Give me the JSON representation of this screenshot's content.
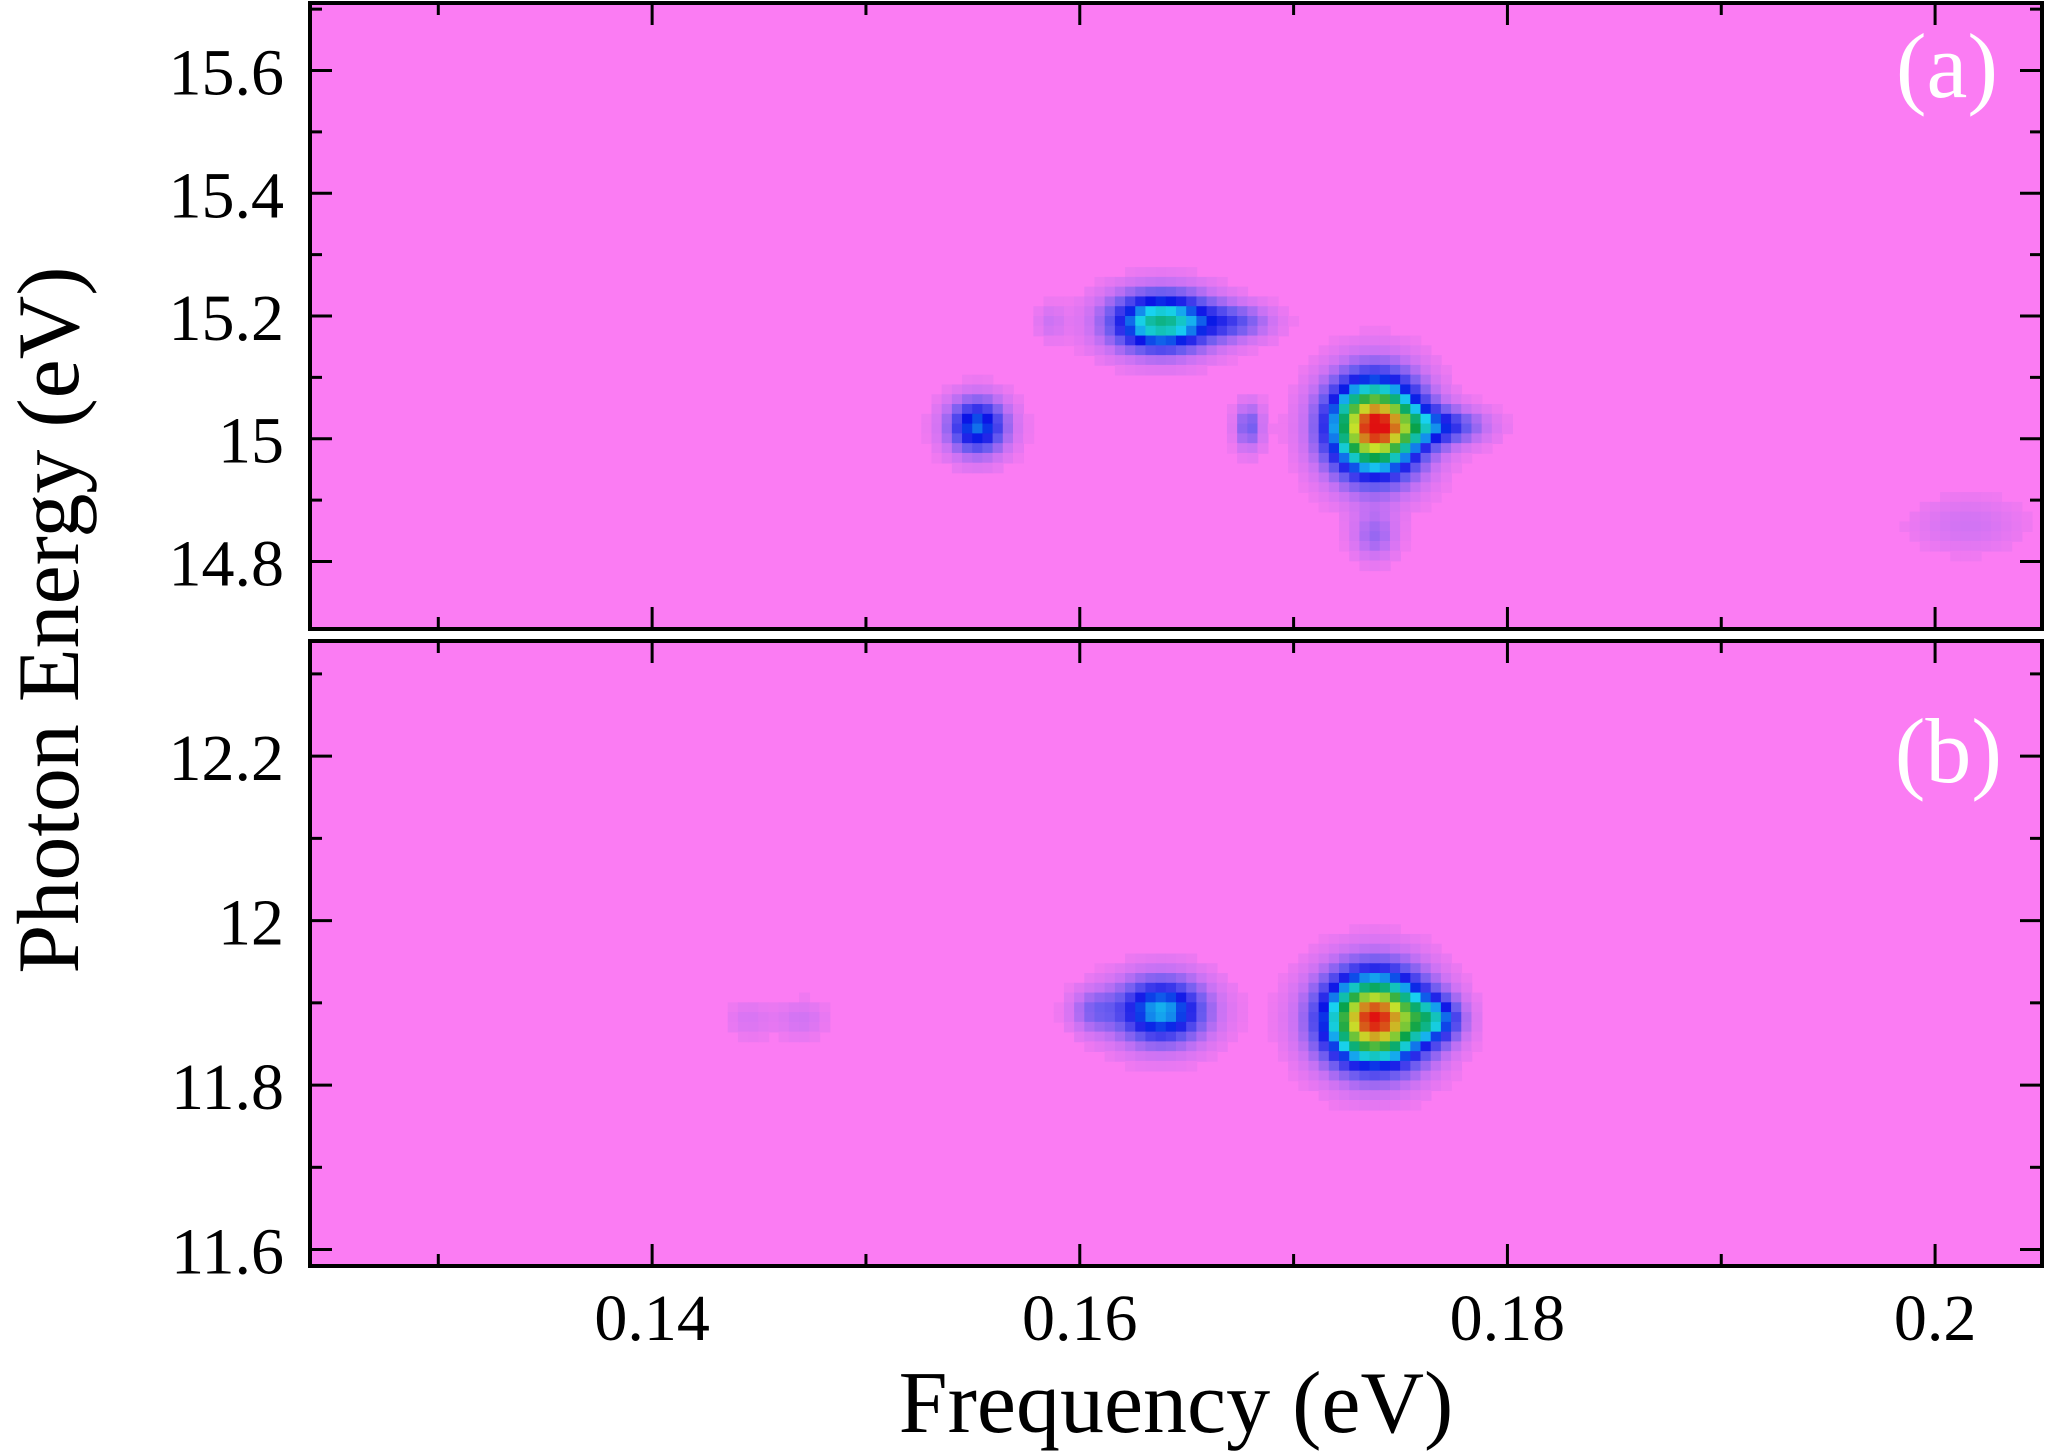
{
  "chart_data": [
    {
      "type": "heatmap",
      "panel_label": "(a)",
      "xlabel": "Frequency (eV)",
      "ylabel": "Photon Energy (eV)",
      "xlim": [
        0.124,
        0.205
      ],
      "ylim": [
        14.69,
        15.71
      ],
      "y_ticks": [
        14.8,
        15.0,
        15.2,
        15.4,
        15.6
      ],
      "y_tick_labels": [
        "14.8",
        "15",
        "15.2",
        "15.4",
        "15.6"
      ],
      "colormap": [
        "#ff7cf0",
        "#c872f4",
        "#6a5cf0",
        "#0a14e6",
        "#18d2f0",
        "#08a24a",
        "#c8e12a",
        "#e01010"
      ],
      "background_color": "#fb7cf3",
      "features": [
        {
          "x": 0.1638,
          "y": 15.19,
          "sx": 0.0019,
          "sy": 0.038,
          "amp": 0.66
        },
        {
          "x": 0.1675,
          "y": 15.19,
          "sx": 0.0013,
          "sy": 0.022,
          "amp": 0.22
        },
        {
          "x": 0.1586,
          "y": 15.19,
          "sx": 0.0005,
          "sy": 0.022,
          "amp": 0.12
        },
        {
          "x": 0.1552,
          "y": 15.02,
          "sx": 0.0011,
          "sy": 0.036,
          "amp": 0.5
        },
        {
          "x": 0.1738,
          "y": 15.02,
          "sx": 0.0017,
          "sy": 0.062,
          "amp": 1.0
        },
        {
          "x": 0.1772,
          "y": 15.02,
          "sx": 0.0015,
          "sy": 0.022,
          "amp": 0.3
        },
        {
          "x": 0.1679,
          "y": 15.02,
          "sx": 0.0005,
          "sy": 0.03,
          "amp": 0.28
        },
        {
          "x": 0.1738,
          "y": 14.84,
          "sx": 0.0008,
          "sy": 0.03,
          "amp": 0.2
        },
        {
          "x": 0.2015,
          "y": 14.86,
          "sx": 0.002,
          "sy": 0.035,
          "amp": 0.12
        }
      ]
    },
    {
      "type": "heatmap",
      "panel_label": "(b)",
      "xlabel": "Frequency (eV)",
      "ylabel": "Photon Energy (eV)",
      "xlim": [
        0.124,
        0.205
      ],
      "ylim": [
        11.58,
        12.34
      ],
      "y_ticks": [
        11.6,
        11.8,
        12.0,
        12.2
      ],
      "y_tick_labels": [
        "11.6",
        "11.8",
        "12",
        "12.2"
      ],
      "x_ticks": [
        0.14,
        0.16,
        0.18,
        0.2
      ],
      "x_tick_labels": [
        "0.14",
        "0.16",
        "0.18",
        "0.2"
      ],
      "colormap": [
        "#ff7cf0",
        "#c872f4",
        "#6a5cf0",
        "#0a14e6",
        "#18d2f0",
        "#08a24a",
        "#c8e12a",
        "#e01010"
      ],
      "background_color": "#fb7cf3",
      "features": [
        {
          "x": 0.1638,
          "y": 11.89,
          "sx": 0.0017,
          "sy": 0.032,
          "amp": 0.55
        },
        {
          "x": 0.1738,
          "y": 11.88,
          "sx": 0.0019,
          "sy": 0.045,
          "amp": 1.0
        },
        {
          "x": 0.1768,
          "y": 11.88,
          "sx": 0.0009,
          "sy": 0.02,
          "amp": 0.3
        },
        {
          "x": 0.1605,
          "y": 11.89,
          "sx": 0.0008,
          "sy": 0.02,
          "amp": 0.18
        },
        {
          "x": 0.147,
          "y": 11.88,
          "sx": 0.0009,
          "sy": 0.018,
          "amp": 0.12
        },
        {
          "x": 0.1445,
          "y": 11.88,
          "sx": 0.0008,
          "sy": 0.018,
          "amp": 0.1
        }
      ]
    }
  ]
}
